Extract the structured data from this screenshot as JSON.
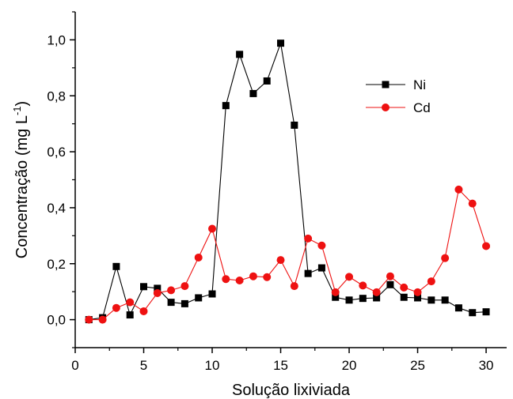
{
  "chart_data": {
    "type": "line",
    "xlabel": "Solução lixiviada",
    "ylabel_main": "Concentração (mg L",
    "ylabel_sup": "-1",
    "ylabel_close": ")",
    "xlim": [
      0,
      31.5
    ],
    "ylim": [
      -0.1,
      1.1
    ],
    "xticks": [
      0,
      5,
      10,
      15,
      20,
      25,
      30
    ],
    "yticks": [
      0.0,
      0.2,
      0.4,
      0.6,
      0.8,
      1.0
    ],
    "xtick_labels": [
      "0",
      "5",
      "10",
      "15",
      "20",
      "25",
      "30"
    ],
    "ytick_labels": [
      "0,0",
      "0,2",
      "0,4",
      "0,6",
      "0,8",
      "1,0"
    ],
    "grid": false,
    "legend_position": "upper-right",
    "series": [
      {
        "name": "Ni",
        "color": "#000000",
        "marker": "square",
        "x": [
          1,
          2,
          3,
          4,
          5,
          6,
          7,
          8,
          9,
          10,
          11,
          12,
          13,
          14,
          15,
          16,
          17,
          18,
          19,
          20,
          21,
          22,
          23,
          24,
          25,
          26,
          27,
          28,
          29,
          30
        ],
        "y": [
          0.0,
          0.007,
          0.19,
          0.017,
          0.118,
          0.112,
          0.062,
          0.057,
          0.078,
          0.092,
          0.765,
          0.948,
          0.808,
          0.853,
          0.988,
          0.695,
          0.165,
          0.185,
          0.08,
          0.07,
          0.076,
          0.078,
          0.125,
          0.08,
          0.078,
          0.07,
          0.07,
          0.042,
          0.025,
          0.028
        ]
      },
      {
        "name": "Cd",
        "color": "#ee1111",
        "marker": "circle",
        "x": [
          1,
          2,
          3,
          4,
          5,
          6,
          7,
          8,
          9,
          10,
          11,
          12,
          13,
          14,
          15,
          16,
          17,
          18,
          19,
          20,
          21,
          22,
          23,
          24,
          25,
          26,
          27,
          28,
          29,
          30
        ],
        "y": [
          0.0,
          0.0,
          0.042,
          0.062,
          0.03,
          0.095,
          0.105,
          0.12,
          0.222,
          0.325,
          0.145,
          0.14,
          0.155,
          0.152,
          0.213,
          0.12,
          0.29,
          0.265,
          0.098,
          0.153,
          0.122,
          0.098,
          0.155,
          0.115,
          0.098,
          0.137,
          0.22,
          0.465,
          0.415,
          0.263
        ]
      }
    ]
  }
}
